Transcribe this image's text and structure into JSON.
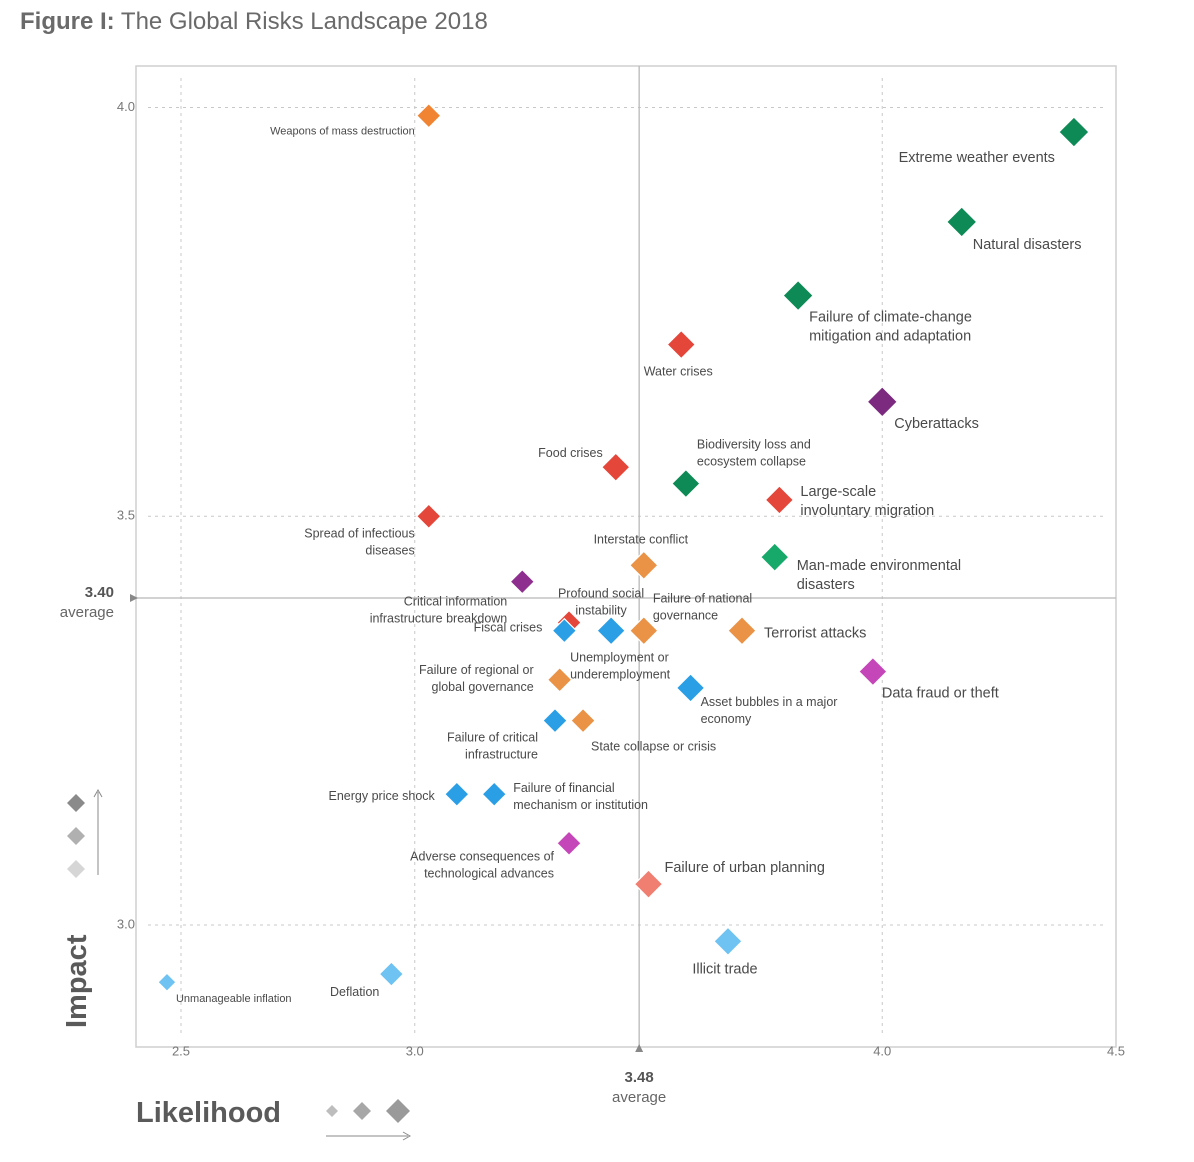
{
  "figure": {
    "title_prefix": "Figure I:",
    "title": "The Global Risks Landscape 2018"
  },
  "chart_data": {
    "type": "scatter",
    "xlabel": "Likelihood",
    "ylabel": "Impact",
    "xlim": [
      2.4,
      4.5
    ],
    "ylim": [
      2.85,
      4.05
    ],
    "x_ticks": [
      {
        "value": 2.5,
        "label": "2.5"
      },
      {
        "value": 3.0,
        "label": "3.0"
      },
      {
        "value": 4.0,
        "label": "4.0"
      },
      {
        "value": 4.5,
        "label": "4.5"
      }
    ],
    "y_ticks": [
      {
        "value": 3.0,
        "label": "3.0"
      },
      {
        "value": 3.5,
        "label": "3.5"
      },
      {
        "value": 4.0,
        "label": "4.0"
      }
    ],
    "x_average": {
      "value": 3.48,
      "label": "3.48",
      "word": "average"
    },
    "y_average": {
      "value": 3.4,
      "label": "3.40",
      "word": "average"
    },
    "grid": "dashed",
    "category_colors": {
      "economic": "#2b9fe6",
      "economic_light": "#6ec3f2",
      "environmental": "#0d8a55",
      "environmental_light": "#16a96a",
      "geopolitical": "#ea9347",
      "geopolitical_orange": "#f18432",
      "societal": "#e5463a",
      "societal_light": "#f07f72",
      "technological": "#7b2a80",
      "technological_light": "#c546b8"
    },
    "points": [
      {
        "name": "Weapons of mass destruction",
        "x": 3.03,
        "y": 3.99,
        "color": "#f18432",
        "size": 1,
        "lines": [
          "Weapons of mass destruction"
        ]
      },
      {
        "name": "Extreme weather events",
        "x": 4.41,
        "y": 3.97,
        "color": "#0d8a55",
        "size": 3,
        "lines": [
          "Extreme weather events"
        ]
      },
      {
        "name": "Natural disasters",
        "x": 4.17,
        "y": 3.86,
        "color": "#0d8a55",
        "size": 3,
        "lines": [
          "Natural disasters"
        ]
      },
      {
        "name": "Failure of climate-change mitigation and adaptation",
        "x": 3.82,
        "y": 3.77,
        "color": "#0d8a55",
        "size": 3,
        "lines": [
          "Failure of climate-change",
          "mitigation and adaptation"
        ]
      },
      {
        "name": "Water crises",
        "x": 3.57,
        "y": 3.71,
        "color": "#e5463a",
        "size": 2,
        "lines": [
          "Water crises"
        ]
      },
      {
        "name": "Cyberattacks",
        "x": 4.0,
        "y": 3.64,
        "color": "#7b2a80",
        "size": 3,
        "lines": [
          "Cyberattacks"
        ]
      },
      {
        "name": "Food crises",
        "x": 3.43,
        "y": 3.56,
        "color": "#e5463a",
        "size": 2,
        "lines": [
          "Food crises"
        ]
      },
      {
        "name": "Biodiversity loss and ecosystem collapse",
        "x": 3.58,
        "y": 3.54,
        "color": "#0d8a55",
        "size": 2,
        "lines": [
          "Biodiversity loss and",
          "ecosystem collapse"
        ]
      },
      {
        "name": "Large-scale involuntary migration",
        "x": 3.78,
        "y": 3.52,
        "color": "#e5463a",
        "size": 2,
        "lines": [
          "Large-scale",
          "involuntary migration"
        ]
      },
      {
        "name": "Spread of infectious diseases",
        "x": 3.03,
        "y": 3.5,
        "color": "#e5463a",
        "size": 1,
        "lines": [
          "Spread of infectious",
          "diseases"
        ]
      },
      {
        "name": "Man-made environmental disasters",
        "x": 3.77,
        "y": 3.45,
        "color": "#16a96a",
        "size": 2,
        "lines": [
          "Man-made environmental",
          "disasters"
        ]
      },
      {
        "name": "Interstate conflict",
        "x": 3.49,
        "y": 3.44,
        "color": "#ea9347",
        "size": 2,
        "lines": [
          "Interstate conflict"
        ]
      },
      {
        "name": "Critical information infrastructure breakdown",
        "x": 3.23,
        "y": 3.42,
        "color": "#8e2e8e",
        "size": 1,
        "lines": [
          "Critical information",
          "infrastructure breakdown"
        ]
      },
      {
        "name": "Profound social instability",
        "x": 3.33,
        "y": 3.37,
        "color": "#e5463a",
        "size": 1,
        "lines": [
          "Profound social",
          "instability"
        ]
      },
      {
        "name": "Fiscal crises",
        "x": 3.32,
        "y": 3.36,
        "color": "#2b9fe6",
        "size": 1,
        "lines": [
          "Fiscal crises"
        ]
      },
      {
        "name": "Unemployment or underemployment",
        "x": 3.42,
        "y": 3.36,
        "color": "#2b9fe6",
        "size": 2,
        "lines": [
          "Unemployment or",
          "underemployment"
        ]
      },
      {
        "name": "Failure of national governance",
        "x": 3.49,
        "y": 3.36,
        "color": "#ea9347",
        "size": 2,
        "lines": [
          "Failure of national",
          "governance"
        ]
      },
      {
        "name": "Terrorist attacks",
        "x": 3.7,
        "y": 3.36,
        "color": "#ea9347",
        "size": 2,
        "lines": [
          "Terrorist attacks"
        ]
      },
      {
        "name": "Data fraud or theft",
        "x": 3.98,
        "y": 3.31,
        "color": "#c546b8",
        "size": 2,
        "lines": [
          "Data fraud or theft"
        ]
      },
      {
        "name": "Failure of regional or global governance",
        "x": 3.31,
        "y": 3.3,
        "color": "#ea9347",
        "size": 1,
        "lines": [
          "Failure of regional or",
          "global governance"
        ]
      },
      {
        "name": "Asset bubbles in a major economy",
        "x": 3.59,
        "y": 3.29,
        "color": "#2b9fe6",
        "size": 2,
        "lines": [
          "Asset bubbles in a major",
          "economy"
        ]
      },
      {
        "name": "Failure of critical infrastructure",
        "x": 3.3,
        "y": 3.25,
        "color": "#2b9fe6",
        "size": 1,
        "lines": [
          "Failure of critical",
          "infrastructure"
        ]
      },
      {
        "name": "State collapse or crisis",
        "x": 3.36,
        "y": 3.25,
        "color": "#ea9347",
        "size": 1,
        "lines": [
          "State collapse or crisis"
        ]
      },
      {
        "name": "Energy price shock",
        "x": 3.09,
        "y": 3.16,
        "color": "#2b9fe6",
        "size": 1,
        "lines": [
          "Energy price shock"
        ]
      },
      {
        "name": "Failure of financial mechanism or institution",
        "x": 3.17,
        "y": 3.16,
        "color": "#2b9fe6",
        "size": 1,
        "lines": [
          "Failure of financial",
          "mechanism or institution"
        ]
      },
      {
        "name": "Adverse consequences of technological advances",
        "x": 3.33,
        "y": 3.1,
        "color": "#c546b8",
        "size": 1,
        "lines": [
          "Adverse consequences of",
          "technological advances"
        ]
      },
      {
        "name": "Failure of urban planning",
        "x": 3.5,
        "y": 3.05,
        "color": "#f07f72",
        "size": 2,
        "lines": [
          "Failure of urban planning"
        ]
      },
      {
        "name": "Illicit trade",
        "x": 3.67,
        "y": 2.98,
        "color": "#6ec3f2",
        "size": 2,
        "lines": [
          "Illicit trade"
        ]
      },
      {
        "name": "Deflation",
        "x": 2.95,
        "y": 2.94,
        "color": "#6ec3f2",
        "size": 1,
        "lines": [
          "Deflation"
        ]
      },
      {
        "name": "Unmanageable inflation",
        "x": 2.47,
        "y": 2.93,
        "color": "#6ec3f2",
        "size": 0,
        "lines": [
          "Unmanageable inflation"
        ]
      }
    ]
  },
  "legend": {
    "impact_icons": [
      "dark-diamond-icon",
      "medium-diamond-icon",
      "light-diamond-icon"
    ],
    "likelihood_icons": [
      "small-diamond-icon",
      "medium-diamond-icon",
      "large-diamond-icon"
    ]
  }
}
